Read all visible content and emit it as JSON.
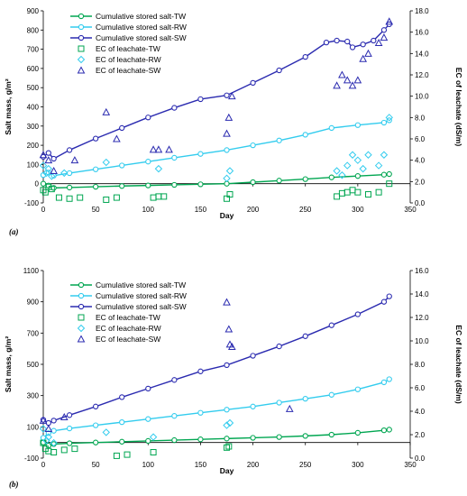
{
  "chart_data": [
    {
      "panel_label": "(a)",
      "type": "scatter",
      "xlabel": "Day",
      "ylabel": "Salt mass, g/m²",
      "y2label": "EC of leachate (dS/m)",
      "xlim": [
        0,
        350
      ],
      "xticks": [
        0,
        50,
        100,
        150,
        200,
        250,
        300,
        350
      ],
      "ylim": [
        -100,
        900
      ],
      "yticks": [
        -100,
        0,
        100,
        200,
        300,
        400,
        500,
        600,
        700,
        800,
        900
      ],
      "y2lim": [
        0,
        18
      ],
      "y2ticks": [
        "0.0",
        "2.0",
        "4.0",
        "6.0",
        "8.0",
        "10.0",
        "12.0",
        "14.0",
        "16.0",
        "18.0"
      ],
      "legend_position": "top-left",
      "series": [
        {
          "name": "Cumulative stored salt-TW",
          "axis": "left",
          "marker": "circle-line",
          "color": "#00a651",
          "x": [
            0,
            5,
            10,
            25,
            50,
            75,
            100,
            125,
            150,
            175,
            200,
            225,
            250,
            275,
            300,
            325,
            330
          ],
          "y": [
            0,
            -10,
            -22,
            -20,
            -16,
            -12,
            -9,
            -6,
            -3,
            0,
            8,
            16,
            24,
            33,
            40,
            47,
            50
          ]
        },
        {
          "name": "Cumulative stored salt-RW",
          "axis": "left",
          "marker": "circle-line",
          "color": "#33ccee",
          "x": [
            0,
            5,
            10,
            25,
            50,
            75,
            100,
            125,
            150,
            175,
            200,
            225,
            250,
            275,
            300,
            325,
            330
          ],
          "y": [
            45,
            58,
            42,
            55,
            75,
            95,
            115,
            135,
            155,
            175,
            200,
            225,
            255,
            290,
            305,
            318,
            330
          ]
        },
        {
          "name": "Cumulative stored salt-SW",
          "axis": "left",
          "marker": "circle-line",
          "color": "#2b2bb0",
          "x": [
            0,
            5,
            10,
            25,
            50,
            75,
            100,
            125,
            150,
            175,
            200,
            225,
            250,
            270,
            280,
            290,
            295,
            305,
            315,
            325,
            330
          ],
          "y": [
            140,
            160,
            130,
            175,
            235,
            290,
            345,
            395,
            440,
            460,
            525,
            590,
            660,
            735,
            745,
            740,
            710,
            725,
            745,
            800,
            830
          ]
        },
        {
          "name": "EC of leachate-TW",
          "axis": "right",
          "marker": "square",
          "color": "#00a651",
          "x": [
            0,
            2,
            5,
            8,
            15,
            25,
            35,
            60,
            70,
            105,
            110,
            115,
            175,
            178,
            280,
            285,
            290,
            295,
            300,
            310,
            320,
            330
          ],
          "y": [
            1.2,
            1.0,
            1.5,
            1.3,
            0.5,
            0.4,
            0.5,
            0.3,
            0.5,
            0.5,
            0.6,
            0.6,
            0.4,
            0.8,
            0.6,
            0.9,
            1.0,
            1.2,
            1.0,
            0.8,
            1.0,
            1.8
          ]
        },
        {
          "name": "EC of leachate-RW",
          "axis": "right",
          "marker": "diamond",
          "color": "#33ccee",
          "x": [
            0,
            3,
            5,
            8,
            20,
            60,
            110,
            175,
            178,
            280,
            285,
            290,
            295,
            300,
            305,
            310,
            320,
            325,
            330
          ],
          "y": [
            3.5,
            2.8,
            3.2,
            2.5,
            2.8,
            3.8,
            3.2,
            2.3,
            3.0,
            3.0,
            2.6,
            3.5,
            4.5,
            4.0,
            3.2,
            4.5,
            3.5,
            4.5,
            8.0
          ]
        },
        {
          "name": "EC of leachate-SW",
          "axis": "right",
          "marker": "triangle",
          "color": "#2b2bb0",
          "x": [
            0,
            5,
            10,
            30,
            60,
            70,
            105,
            110,
            120,
            175,
            177,
            180,
            280,
            285,
            290,
            295,
            300,
            305,
            310,
            320,
            325,
            330
          ],
          "y": [
            4.5,
            4.0,
            3.0,
            4.0,
            8.5,
            6.0,
            5.0,
            5.0,
            5.0,
            6.5,
            8.0,
            10.0,
            11.0,
            12.0,
            11.5,
            11.0,
            11.5,
            13.5,
            14.0,
            15.0,
            15.5,
            17.0
          ]
        }
      ]
    },
    {
      "panel_label": "(b)",
      "type": "scatter",
      "xlabel": "Day",
      "ylabel": "Salt mass, g/m²",
      "y2label": "EC of leachate (dS/m)",
      "xlim": [
        0,
        350
      ],
      "xticks": [
        0,
        50,
        100,
        150,
        200,
        250,
        300,
        350
      ],
      "ylim": [
        -100,
        1100
      ],
      "yticks": [
        -100,
        100,
        300,
        500,
        700,
        900,
        1100
      ],
      "y2lim": [
        0,
        16
      ],
      "y2ticks": [
        "0.0",
        "2.0",
        "4.0",
        "6.0",
        "8.0",
        "10.0",
        "12.0",
        "14.0",
        "16.0"
      ],
      "legend_position": "top-left",
      "series": [
        {
          "name": "Cumulative stored salt-TW",
          "axis": "left",
          "marker": "circle-line",
          "color": "#00a651",
          "x": [
            0,
            5,
            10,
            25,
            50,
            75,
            100,
            125,
            150,
            175,
            200,
            225,
            250,
            275,
            300,
            325,
            330
          ],
          "y": [
            0,
            -20,
            -10,
            -5,
            0,
            5,
            10,
            15,
            20,
            25,
            30,
            35,
            42,
            50,
            62,
            78,
            82
          ]
        },
        {
          "name": "Cumulative stored salt-RW",
          "axis": "left",
          "marker": "circle-line",
          "color": "#33ccee",
          "x": [
            0,
            5,
            10,
            25,
            50,
            75,
            100,
            125,
            150,
            175,
            200,
            225,
            250,
            275,
            300,
            325,
            330
          ],
          "y": [
            30,
            60,
            75,
            90,
            110,
            130,
            150,
            170,
            190,
            210,
            230,
            255,
            280,
            305,
            340,
            385,
            405
          ]
        },
        {
          "name": "Cumulative stored salt-SW",
          "axis": "left",
          "marker": "circle-line",
          "color": "#2b2bb0",
          "x": [
            0,
            5,
            10,
            25,
            50,
            75,
            100,
            125,
            150,
            175,
            200,
            225,
            250,
            275,
            300,
            325,
            330
          ],
          "y": [
            145,
            125,
            140,
            175,
            230,
            290,
            345,
            400,
            455,
            495,
            555,
            615,
            680,
            750,
            820,
            900,
            935
          ]
        },
        {
          "name": "EC of leachate-TW",
          "axis": "right",
          "marker": "square",
          "color": "#00a651",
          "x": [
            0,
            2,
            5,
            10,
            20,
            30,
            70,
            80,
            105,
            175,
            177
          ],
          "y": [
            1.3,
            0.8,
            0.6,
            0.5,
            0.7,
            0.8,
            0.2,
            0.3,
            0.5,
            0.9,
            1.0
          ]
        },
        {
          "name": "EC of leachate-RW",
          "axis": "right",
          "marker": "diamond",
          "color": "#33ccee",
          "x": [
            0,
            3,
            5,
            10,
            60,
            105,
            175,
            178
          ],
          "y": [
            2.5,
            1.5,
            1.8,
            1.3,
            2.2,
            1.8,
            2.8,
            3.0
          ]
        },
        {
          "name": "EC of leachate-SW",
          "axis": "right",
          "marker": "triangle",
          "color": "#2b2bb0",
          "x": [
            0,
            5,
            20,
            175,
            177,
            178,
            180,
            235
          ],
          "y": [
            3.2,
            2.5,
            3.5,
            13.3,
            11.0,
            9.7,
            9.5,
            4.2
          ]
        }
      ]
    }
  ]
}
